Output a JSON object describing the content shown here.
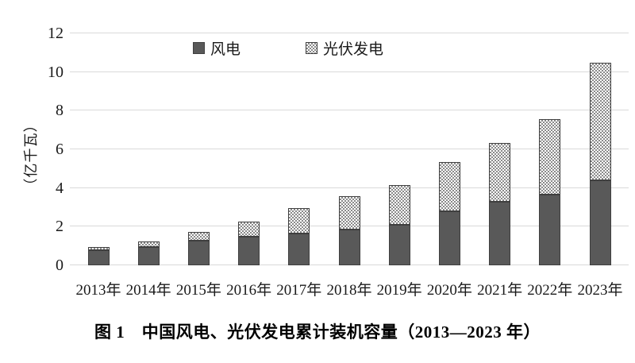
{
  "figure": {
    "caption": "图 1　中国风电、光伏发电累计装机容量（2013—2023 年）"
  },
  "chart_data": {
    "type": "bar",
    "stacked": true,
    "title": "",
    "xlabel": "",
    "ylabel": "（亿千瓦）",
    "categories": [
      "2013年",
      "2014年",
      "2015年",
      "2016年",
      "2017年",
      "2018年",
      "2019年",
      "2020年",
      "2021年",
      "2022年",
      "2023年"
    ],
    "series": [
      {
        "name": "风电",
        "values": [
          0.77,
          0.96,
          1.29,
          1.49,
          1.64,
          1.84,
          2.1,
          2.81,
          3.28,
          3.65,
          4.41
        ],
        "style": "solid",
        "color": "#595959"
      },
      {
        "name": "光伏发电",
        "values": [
          0.19,
          0.28,
          0.43,
          0.77,
          1.3,
          1.74,
          2.04,
          2.53,
          3.06,
          3.93,
          6.09
        ],
        "style": "checker",
        "color": "#8a8a8a"
      }
    ],
    "ylim": [
      0,
      12
    ],
    "yticks": [
      0,
      2,
      4,
      6,
      8,
      10,
      12
    ],
    "grid": true,
    "legend_position": "top-center"
  },
  "colors": {
    "wind_fill": "#595959",
    "solar_pattern": "#8a8a8a",
    "bar_border": "#3f3f3f",
    "gridline": "#d9d9d9",
    "text": "#1a1a1a"
  }
}
